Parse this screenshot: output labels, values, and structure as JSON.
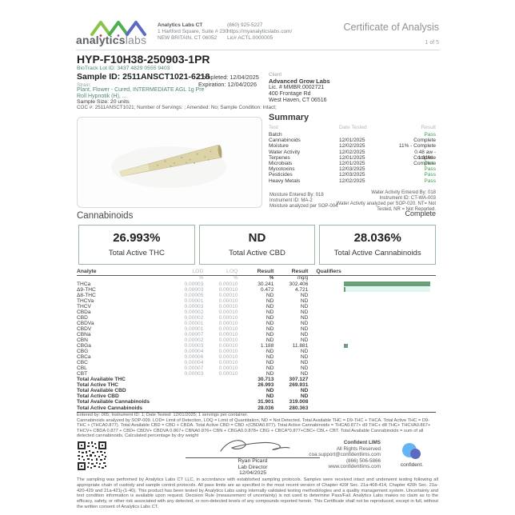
{
  "page": {
    "page_number": "1 of 5"
  },
  "header": {
    "brand": {
      "word1": "analytics",
      "word2": "labs"
    },
    "lab": {
      "name": "Analytics Labs CT",
      "address1": "1 Hartford Square, Suite # 230",
      "address2": "NEW BRITAIN, CT 06052",
      "phone": "(860) 925-5227",
      "website": "https://myanalyticslabs.com/",
      "license": "Lic# ACTL.0000005"
    },
    "title": "Certificate of Analysis"
  },
  "sample": {
    "name": "HYP-F10H38-250903-1PR",
    "biotrack": "BioTrack Lot ID: 3437 4829 0555 9403",
    "sample_id": "Sample ID: 2511ANSCT1021-6218",
    "completed": "Completed: 12/04/2025",
    "expiration": "Expiration: 12/04/2026",
    "strain_label": "Strain:",
    "strain_value": "Plant, Flower - Cured, INTERMEDIATE AGL 1g Pre Roll Hypnotik (H), ...",
    "sample_size": "Sample Size: 20 units",
    "coc": "COC #: 2511ANSCT1021; Number of Servings: ; Amended: No; Sample Condition: Intact;"
  },
  "client": {
    "label": "Client",
    "name": "Advanced Grow Labs",
    "license": "Lic. # MMBR.0002721",
    "address1": "400 Frontage Rd",
    "address2": "West Haven, CT 06516"
  },
  "summary": {
    "title": "Summary",
    "columns": {
      "test": "Test",
      "date": "Date Tested",
      "result": "Result"
    },
    "rows": [
      {
        "test": "Batch",
        "date": "",
        "result": "Pass",
        "cls": "pass"
      },
      {
        "test": "Cannabinoids",
        "date": "12/01/2025",
        "result": "Complete",
        "cls": ""
      },
      {
        "test": "Moisture",
        "date": "12/02/2025",
        "result": "11% - Complete",
        "cls": ""
      },
      {
        "test": "Water Activity",
        "date": "12/02/2025",
        "result": "0.48 aw - Complete",
        "cls": ""
      },
      {
        "test": "Terpenes",
        "date": "12/01/2025",
        "result": "1.31% - Complete",
        "cls": ""
      },
      {
        "test": "Microbials",
        "date": "12/01/2025",
        "result": "Pass",
        "cls": "pass"
      },
      {
        "test": "Mycotoxins",
        "date": "12/03/2025",
        "result": "Pass",
        "cls": "pass"
      },
      {
        "test": "Pesticides",
        "date": "12/03/2025",
        "result": "Pass",
        "cls": "pass"
      },
      {
        "test": "Heavy Metals",
        "date": "12/02/2025",
        "result": "Pass",
        "cls": "pass"
      }
    ],
    "moisture_notes": [
      "Moisture Entered By: 018",
      "Instrument ID: MA-2",
      "Moisture analyzed per SOP-004"
    ],
    "water_notes": [
      "Water Activity Entered By: 018",
      "Instrument ID: CT-WA-003",
      "Water Activity analyzed per SOP-020. NT= Not",
      "Tested, NR = Not Reported."
    ],
    "complete_label": "Complete"
  },
  "cannabinoids": {
    "heading": "Cannabinoids",
    "status": "Complete",
    "totals_boxes": [
      {
        "value": "26.993%",
        "label": "Total Active THC"
      },
      {
        "value": "ND",
        "label": "Total Active CBD"
      },
      {
        "value": "28.036%",
        "label": "Total Active Cannabinoids"
      }
    ],
    "table": {
      "columns": {
        "analyte": "Analyte",
        "lod": "LOD",
        "loq": "LOQ",
        "result_pct": "Result",
        "result_mgg": "Result",
        "qualifiers": "Qualifiers"
      },
      "units": {
        "lod": "%",
        "loq": "%",
        "pct": "%",
        "mgg": "mg/g"
      },
      "rows": [
        {
          "name": "THCa",
          "lod": "0.00003",
          "loq": "0.00010",
          "pct": "30.241",
          "mgg": "302.406",
          "bar": 100,
          "track": true
        },
        {
          "name": "Δ9-THC",
          "lod": "0.00003",
          "loq": "0.00010",
          "pct": "0.472",
          "mgg": "4.721",
          "bar": 1.8,
          "track": true
        },
        {
          "name": "Δ8-THC",
          "lod": "0.00005",
          "loq": "0.00010",
          "pct": "ND",
          "mgg": "ND"
        },
        {
          "name": "THCVa",
          "lod": "0.00001",
          "loq": "0.00010",
          "pct": "ND",
          "mgg": "ND"
        },
        {
          "name": "THCV",
          "lod": "0.00003",
          "loq": "0.00010",
          "pct": "ND",
          "mgg": "ND"
        },
        {
          "name": "CBDa",
          "lod": "0.00002",
          "loq": "0.00010",
          "pct": "ND",
          "mgg": "ND"
        },
        {
          "name": "CBD",
          "lod": "0.00002",
          "loq": "0.00010",
          "pct": "ND",
          "mgg": "ND"
        },
        {
          "name": "CBDVa",
          "lod": "0.00001",
          "loq": "0.00010",
          "pct": "ND",
          "mgg": "ND"
        },
        {
          "name": "CBDV",
          "lod": "0.00001",
          "loq": "0.00010",
          "pct": "ND",
          "mgg": "ND"
        },
        {
          "name": "CBNa",
          "lod": "0.00007",
          "loq": "0.00010",
          "pct": "ND",
          "mgg": "ND"
        },
        {
          "name": "CBN",
          "lod": "0.00002",
          "loq": "0.00010",
          "pct": "ND",
          "mgg": "ND"
        },
        {
          "name": "CBGa",
          "lod": "0.00003",
          "loq": "0.00010",
          "pct": "1.188",
          "mgg": "11.881",
          "bar": 3.9
        },
        {
          "name": "CBG",
          "lod": "0.00004",
          "loq": "0.00010",
          "pct": "ND",
          "mgg": "ND"
        },
        {
          "name": "CBCa",
          "lod": "0.00006",
          "loq": "0.00010",
          "pct": "ND",
          "mgg": "ND"
        },
        {
          "name": "CBC",
          "lod": "0.00004",
          "loq": "0.00010",
          "pct": "ND",
          "mgg": "ND"
        },
        {
          "name": "CBL",
          "lod": "0.00007",
          "loq": "0.00010",
          "pct": "ND",
          "mgg": "ND"
        },
        {
          "name": "CBT",
          "lod": "0.00003",
          "loq": "0.00010",
          "pct": "ND",
          "mgg": "ND"
        }
      ],
      "totals": [
        {
          "name": "Total Available THC",
          "pct": "30.713",
          "mgg": "307.127"
        },
        {
          "name": "Total Active THC",
          "pct": "26.993",
          "mgg": "269.931"
        },
        {
          "name": "Total Available CBD",
          "pct": "ND",
          "mgg": "ND"
        },
        {
          "name": "Total Active CBD",
          "pct": "ND",
          "mgg": "ND"
        },
        {
          "name": "Total Available Cannabinoids",
          "pct": "31.901",
          "mgg": "319.008"
        },
        {
          "name": "Total Active Cannabinoids",
          "pct": "28.036",
          "mgg": "280.363"
        }
      ]
    },
    "footnote1": "Entered by: 005; Instrument ID: 1; Date Tested: 12/01/2025; 1 servings per container.",
    "footnote2": "Cannabinoids analyzed by SOP-009. LOD= Limit of Detection, LOQ = Limit of Quantitation, ND = Not Detected. Total Available THC = D9-THC + THCA. Total Active THC = D9-THC + (THCA0.877). Total Available CBD = CBD + CBDA. Total Active CBD = CBD +(CBDA0.877). Total Active Cannabinoids = THCA0.877+ d9 THC+ d8 THC+ THCVA0.867+ THCV+ CBDA 0.877 + CBD+ CBDV+ CBDVA 0.867+ CBNA0.876+ CBN + CBGA0.0.878+ CBG + CBCA*0.877+CBC+ CBL+ CBT. Total Available Cannabinoids = sum of all detected cannabinoids. Calculated percentage by dry weight"
  },
  "footer": {
    "signer": {
      "name": "Ryan Picard",
      "title": "Lab Director",
      "date": "12/04/2025"
    },
    "lims": [
      "Confident LIMS",
      "All Rights Reserved",
      "coa.support@confidentlims.com",
      "(866) 506-5866",
      "www.confidentlims.com"
    ],
    "lims_logo_text": "confident.",
    "legal": "The sampling was performed by Analytics Labs CT LLC, in accordance with established sampling protocols. Samples were received intact and underwent testing following all appropriate chain of custody and sample control protocols. All pass limits are as specified in the most recent version of Chapter 420f Sec. 21a-408-414, Chapter 420h Sec. 21a-420-429 and 21a-421j-(1-40). This product has been tested by Analytics Labs using internally validated testing methodologies and a quality management system. Uncertainty and test condition information is available upon request. Decision Rule (measurement of uncertainty) is not used to determine Pass/Fail. Analytics Labs makes no claim as to the efficacy, safety, or other risk associated with any detected, or non-detected levels of any compounds reported herein. This Certificate shall not be reproduced, except in full, without the written consent of Analytics Labs CT."
  },
  "colors": {
    "brand_teal": "#4f8578",
    "pass_green": "#3fa14c",
    "bar_green": "#6ba07a",
    "bar_track_mint": "#dff7f1",
    "box_border": "#9fb8a5"
  }
}
